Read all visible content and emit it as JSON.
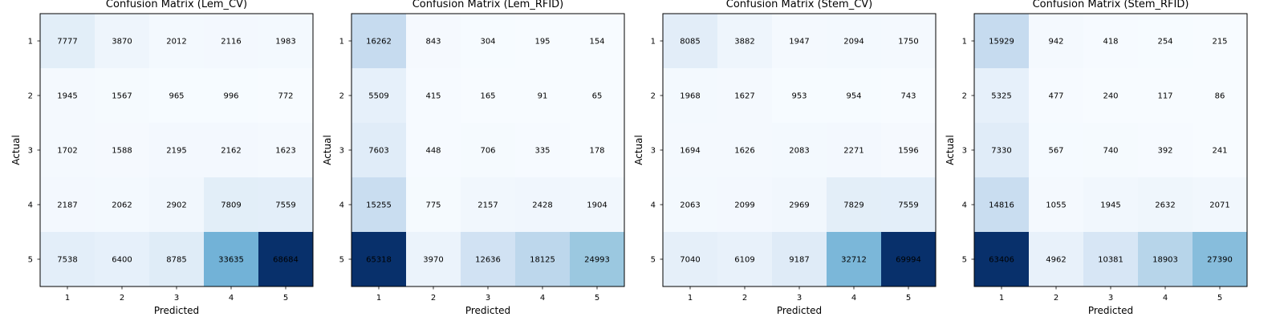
{
  "chart_data": [
    {
      "type": "heatmap",
      "title": "Confusion Matrix (Lem_CV)",
      "xlabel": "Predicted",
      "ylabel": "Actual",
      "x_categories": [
        "1",
        "2",
        "3",
        "4",
        "5"
      ],
      "y_categories": [
        "1",
        "2",
        "3",
        "4",
        "5"
      ],
      "colormap": "Blues",
      "values": [
        [
          7777,
          3870,
          2012,
          2116,
          1983
        ],
        [
          1945,
          1567,
          965,
          996,
          772
        ],
        [
          1702,
          1588,
          2195,
          2162,
          1623
        ],
        [
          2187,
          2062,
          2902,
          7809,
          7559
        ],
        [
          7538,
          6400,
          8785,
          33635,
          68684
        ]
      ]
    },
    {
      "type": "heatmap",
      "title": "Confusion Matrix (Lem_RFID)",
      "xlabel": "Predicted",
      "ylabel": "Actual",
      "x_categories": [
        "1",
        "2",
        "3",
        "4",
        "5"
      ],
      "y_categories": [
        "1",
        "2",
        "3",
        "4",
        "5"
      ],
      "colormap": "Blues",
      "values": [
        [
          16262,
          843,
          304,
          195,
          154
        ],
        [
          5509,
          415,
          165,
          91,
          65
        ],
        [
          7603,
          448,
          706,
          335,
          178
        ],
        [
          15255,
          775,
          2157,
          2428,
          1904
        ],
        [
          65318,
          3970,
          12636,
          18125,
          24993
        ]
      ]
    },
    {
      "type": "heatmap",
      "title": "Confusion Matrix (Stem_CV)",
      "xlabel": "Predicted",
      "ylabel": "Actual",
      "x_categories": [
        "1",
        "2",
        "3",
        "4",
        "5"
      ],
      "y_categories": [
        "1",
        "2",
        "3",
        "4",
        "5"
      ],
      "colormap": "Blues",
      "values": [
        [
          8085,
          3882,
          1947,
          2094,
          1750
        ],
        [
          1968,
          1627,
          953,
          954,
          743
        ],
        [
          1694,
          1626,
          2083,
          2271,
          1596
        ],
        [
          2063,
          2099,
          2969,
          7829,
          7559
        ],
        [
          7040,
          6109,
          9187,
          32712,
          69994
        ]
      ]
    },
    {
      "type": "heatmap",
      "title": "Confusion Matrix (Stem_RFID)",
      "xlabel": "Predicted",
      "ylabel": "Actual",
      "x_categories": [
        "1",
        "2",
        "3",
        "4",
        "5"
      ],
      "y_categories": [
        "1",
        "2",
        "3",
        "4",
        "5"
      ],
      "colormap": "Blues",
      "values": [
        [
          15929,
          942,
          418,
          254,
          215
        ],
        [
          5325,
          477,
          240,
          117,
          86
        ],
        [
          7330,
          567,
          740,
          392,
          241
        ],
        [
          14816,
          1055,
          1945,
          2632,
          2071
        ],
        [
          63406,
          4962,
          10381,
          18903,
          27390
        ]
      ]
    }
  ]
}
